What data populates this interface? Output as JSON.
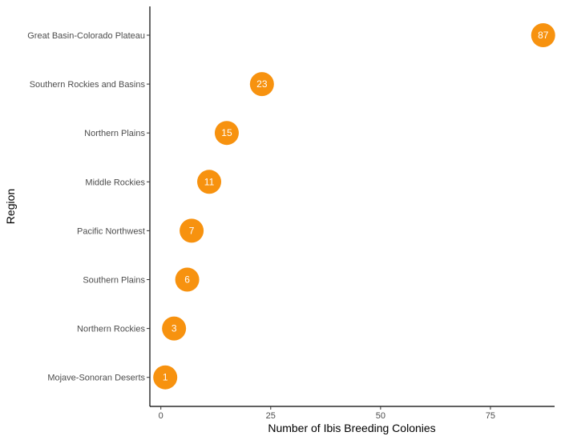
{
  "chart_data": {
    "type": "scatter",
    "xlabel": "Number of Ibis Breeding Colonies",
    "ylabel": "Region",
    "xlim": [
      -2.5,
      89.6
    ],
    "xticks": [
      0,
      25,
      50,
      75
    ],
    "grid": false,
    "legend": "none",
    "categories": [
      "Great Basin-Colorado Plateau",
      "Southern Rockies and Basins",
      "Northern Plains",
      "Middle Rockies",
      "Pacific Northwest",
      "Southern Plains",
      "Northern Rockies",
      "Mojave-Sonoran Deserts"
    ],
    "values": [
      87,
      23,
      15,
      11,
      7,
      6,
      3,
      1
    ],
    "colors": {
      "point": "#f7920f",
      "label": "#ffffff",
      "axis": "#000000",
      "tick_text": "#4d4d4d"
    }
  }
}
